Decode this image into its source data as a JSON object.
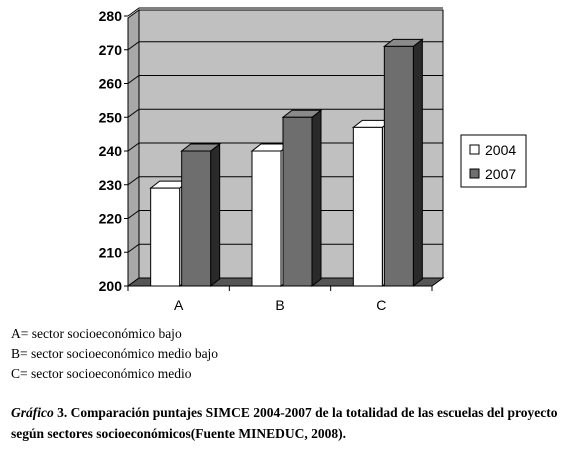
{
  "chart_data": {
    "type": "bar",
    "categories": [
      "A",
      "B",
      "C"
    ],
    "series": [
      {
        "name": "2004",
        "values": [
          229,
          240,
          247
        ],
        "color": "#ffffff"
      },
      {
        "name": "2007",
        "values": [
          240,
          250,
          271
        ],
        "color": "#6e6e6e"
      }
    ],
    "ylim": [
      200,
      280
    ],
    "yticks": [
      "200",
      "210",
      "220",
      "230",
      "240",
      "250",
      "260",
      "270",
      "280"
    ],
    "grid": true,
    "legend": "right",
    "colors": {
      "wall": "#c0c0c0",
      "floor": "#555555",
      "bar_dark": "#6e6e6e"
    }
  },
  "notes": [
    "A= sector socioeconómico bajo",
    "B= sector socioeconómico medio bajo",
    "C= sector socioeconómico medio"
  ],
  "caption": {
    "label": "Gráfico",
    "number": "3.",
    "text": "Comparación puntajes SIMCE 2004-2007 de la totalidad de las escuelas del proyecto  según sectores socioeconómicos(Fuente MINEDUC, 2008)."
  }
}
